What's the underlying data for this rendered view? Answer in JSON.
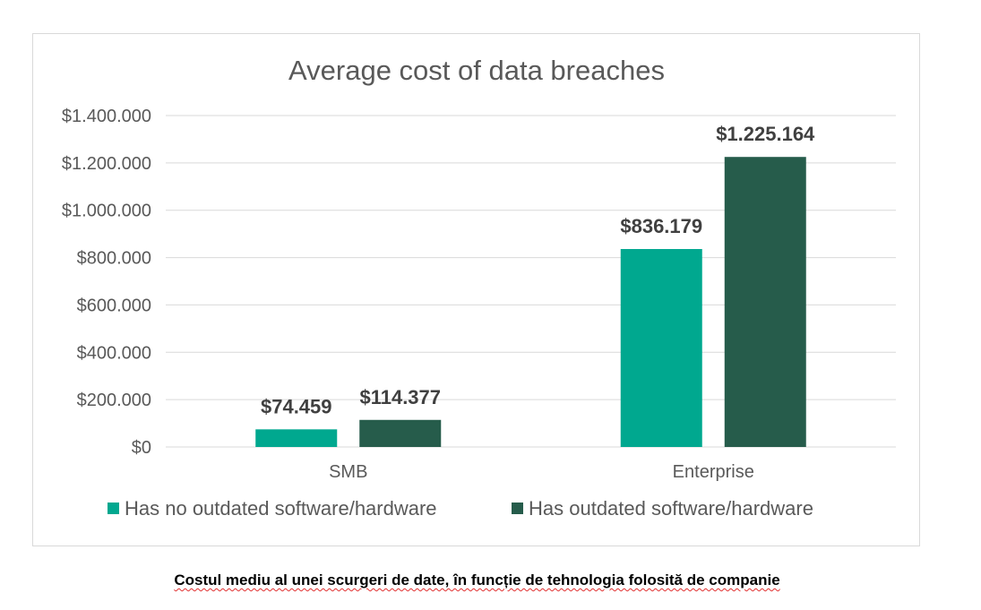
{
  "chart_data": {
    "type": "bar",
    "title": "Average cost of data breaches",
    "categories": [
      "SMB",
      "Enterprise"
    ],
    "series": [
      {
        "name": "Has no outdated software/hardware",
        "color": "#00a88f",
        "values": [
          74459,
          836179
        ],
        "labels": [
          "$74.459",
          "$836.179"
        ]
      },
      {
        "name": "Has outdated software/hardware",
        "color": "#265c4b",
        "values": [
          114377,
          1225164
        ],
        "labels": [
          "$114.377",
          "$1.225.164"
        ]
      }
    ],
    "ylim": [
      0,
      1400000
    ],
    "yticks": [
      0,
      200000,
      400000,
      600000,
      800000,
      1000000,
      1200000,
      1400000
    ],
    "ytick_labels": [
      "$0",
      "$200.000",
      "$400.000",
      "$600.000",
      "$800.000",
      "$1.000.000",
      "$1.200.000",
      "$1.400.000"
    ],
    "xlabel": "",
    "ylabel": "",
    "grid": true,
    "legend_position": "bottom"
  },
  "caption": "Costul mediu al unei scurgeri de date, în funcție de tehnologia folosită de companie"
}
